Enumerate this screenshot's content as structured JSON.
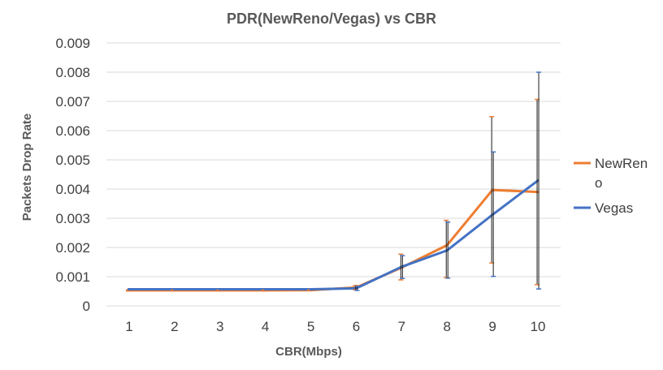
{
  "chart_data": {
    "type": "line",
    "title": "PDR(NewReno/Vegas) vs CBR",
    "xlabel": "CBR(Mbps)",
    "ylabel": "Packets Drop Rate",
    "categories": [
      "1",
      "2",
      "3",
      "4",
      "5",
      "6",
      "7",
      "8",
      "9",
      "10"
    ],
    "ylim": [
      0,
      0.009
    ],
    "yticks": [
      "0",
      "0.001",
      "0.002",
      "0.003",
      "0.004",
      "0.005",
      "0.006",
      "0.007",
      "0.008",
      "0.009"
    ],
    "grid": true,
    "legend_position": "right",
    "series": [
      {
        "name": "NewReno",
        "legend_lines": [
          "NewRen",
          "o"
        ],
        "color": "#ED7D31",
        "values": [
          0.00053,
          0.00053,
          0.00053,
          0.00053,
          0.00054,
          0.00063,
          0.00131,
          0.00208,
          0.00397,
          0.0039
        ],
        "err_low": [
          0.00051,
          0.00051,
          0.00051,
          0.00051,
          0.00052,
          0.00055,
          0.00089,
          0.00097,
          0.00147,
          0.00073
        ],
        "err_high": [
          0.00055,
          0.00055,
          0.00055,
          0.00055,
          0.00056,
          0.0007,
          0.00177,
          0.00293,
          0.00648,
          0.00707
        ]
      },
      {
        "name": "Vegas",
        "legend_lines": [
          "Vegas"
        ],
        "color": "#4472C4",
        "values": [
          0.00057,
          0.00057,
          0.00057,
          0.00057,
          0.00057,
          0.0006,
          0.00134,
          0.0019,
          0.00312,
          0.00429
        ],
        "err_low": [
          0.00055,
          0.00055,
          0.00055,
          0.00055,
          0.00055,
          0.00053,
          0.00094,
          0.00095,
          0.00101,
          0.00058
        ],
        "err_high": [
          0.00059,
          0.00059,
          0.00059,
          0.00059,
          0.00059,
          0.00067,
          0.00172,
          0.00287,
          0.00527,
          0.008
        ]
      }
    ]
  }
}
